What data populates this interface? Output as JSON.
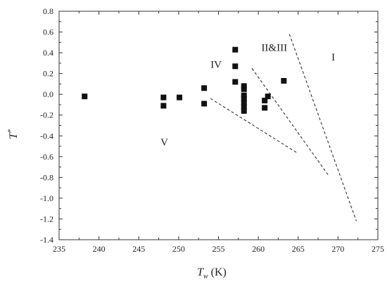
{
  "chart_data": {
    "type": "scatter",
    "title": "",
    "xlabel": "T",
    "xlabel_subscript": "w",
    "xlabel_unit": "(K)",
    "ylabel": "T",
    "ylabel_superscript": "*",
    "xlim": [
      235,
      275
    ],
    "ylim": [
      -1.4,
      0.8
    ],
    "xticks": [
      235,
      240,
      245,
      250,
      255,
      260,
      265,
      270,
      275
    ],
    "yticks": [
      0.8,
      0.6,
      0.4,
      0.2,
      0.0,
      -0.2,
      -0.4,
      -0.6,
      -0.8,
      -1.0,
      -1.2,
      -1.4
    ],
    "xtick_labels": [
      "235",
      "240",
      "245",
      "250",
      "255",
      "260",
      "265",
      "270",
      "275"
    ],
    "ytick_labels": [
      "0.8",
      "0.6",
      "0.4",
      "0.2",
      "0.0",
      "-0.2",
      "-0.4",
      "-0.6",
      "-0.8",
      "-1.0",
      "-1.2",
      "-1.4"
    ],
    "grid": false,
    "points": [
      {
        "x": 238.2,
        "y": -0.02
      },
      {
        "x": 248.1,
        "y": -0.03
      },
      {
        "x": 248.1,
        "y": -0.11
      },
      {
        "x": 250.1,
        "y": -0.03
      },
      {
        "x": 253.2,
        "y": 0.06
      },
      {
        "x": 253.2,
        "y": -0.09
      },
      {
        "x": 257.1,
        "y": 0.43
      },
      {
        "x": 257.1,
        "y": 0.27
      },
      {
        "x": 257.1,
        "y": 0.12
      },
      {
        "x": 258.2,
        "y": 0.08
      },
      {
        "x": 258.2,
        "y": 0.05
      },
      {
        "x": 258.2,
        "y": -0.01
      },
      {
        "x": 258.2,
        "y": -0.04
      },
      {
        "x": 258.2,
        "y": -0.08
      },
      {
        "x": 258.2,
        "y": -0.12
      },
      {
        "x": 258.2,
        "y": -0.16
      },
      {
        "x": 260.8,
        "y": -0.06
      },
      {
        "x": 260.8,
        "y": -0.13
      },
      {
        "x": 261.2,
        "y": -0.02
      },
      {
        "x": 263.2,
        "y": 0.13
      }
    ],
    "boundaries": [
      {
        "x": [
          254.0,
          265.0
        ],
        "y": [
          -0.04,
          -0.57
        ]
      },
      {
        "x": [
          259.2,
          268.8
        ],
        "y": [
          0.25,
          -0.78
        ]
      },
      {
        "x": [
          263.9,
          272.3
        ],
        "y": [
          0.58,
          -1.22
        ]
      }
    ],
    "regions": [
      {
        "label": "I",
        "x": 269.4,
        "y": 0.36
      },
      {
        "label": "II&III",
        "x": 262.0,
        "y": 0.45
      },
      {
        "label": "IV",
        "x": 254.7,
        "y": 0.29
      },
      {
        "label": "V",
        "x": 248.2,
        "y": -0.46
      }
    ],
    "colors": {
      "marker": "#111111",
      "line": "#333333",
      "axis": "#333333"
    }
  }
}
